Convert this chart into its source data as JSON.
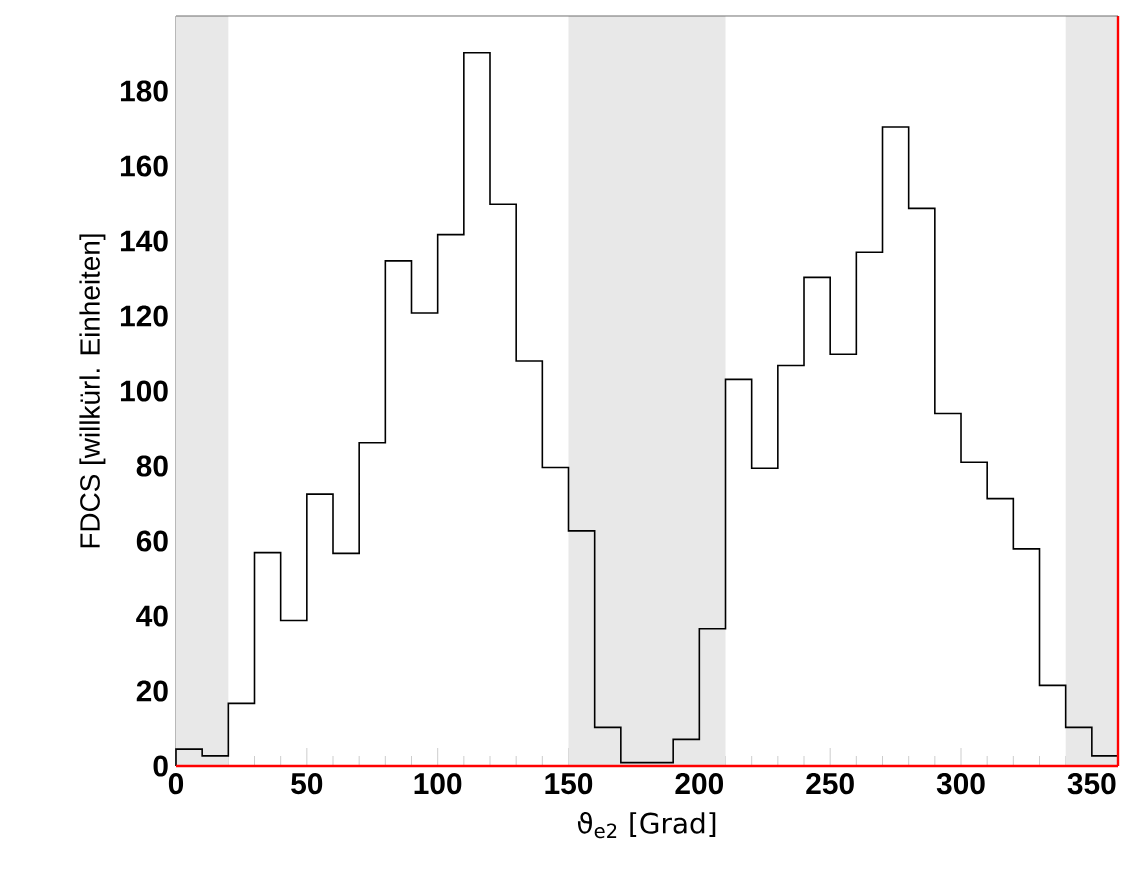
{
  "chart_data": {
    "type": "histogram",
    "xlabel": "ϑ$_{e2}$  [Grad]",
    "ylabel": "FDCS [willkürl. Einheiten]",
    "bins": [
      0,
      10,
      20,
      30,
      40,
      50,
      60,
      70,
      80,
      90,
      100,
      110,
      120,
      130,
      140,
      150,
      160,
      170,
      180,
      190,
      200,
      210,
      220,
      230,
      240,
      250,
      260,
      270,
      280,
      290,
      300,
      310,
      320,
      330,
      340,
      350,
      360
    ],
    "values": [
      4.5,
      2.7,
      16.7,
      56.9,
      38.8,
      72.5,
      56.7,
      86.2,
      134.7,
      120.8,
      141.7,
      190.2,
      149.8,
      108,
      79.6,
      62.7,
      10.3,
      0.9,
      0.9,
      7.1,
      36.6,
      103.1,
      79.4,
      106.8,
      130.3,
      109.8,
      137,
      170.4,
      148.7,
      94,
      81,
      71.3,
      57.9,
      21.5,
      10.3,
      2.7
    ],
    "color": "#000000",
    "xlim": [
      0,
      360
    ],
    "ylim": [
      0,
      200
    ],
    "xticks": [
      0,
      50,
      100,
      150,
      200,
      250,
      300,
      350
    ],
    "yticks": [
      0,
      20,
      40,
      60,
      80,
      100,
      120,
      140,
      160,
      180
    ],
    "bands": [
      {
        "axis": "x",
        "from": 0,
        "to": 20,
        "color": "#e8e8e8"
      },
      {
        "axis": "x",
        "from": 150,
        "to": 210,
        "color": "#e8e8e8"
      },
      {
        "axis": "x",
        "from": 340,
        "to": 360,
        "color": "#e8e8e8"
      }
    ],
    "series": [
      {
        "type": "line",
        "color": "#ff0000",
        "x": [
          0,
          360
        ],
        "values": [
          0,
          0
        ]
      }
    ],
    "ref_lines": [
      {
        "axis": "x",
        "value": 360,
        "color": "#ff0000"
      }
    ],
    "grid": false
  }
}
